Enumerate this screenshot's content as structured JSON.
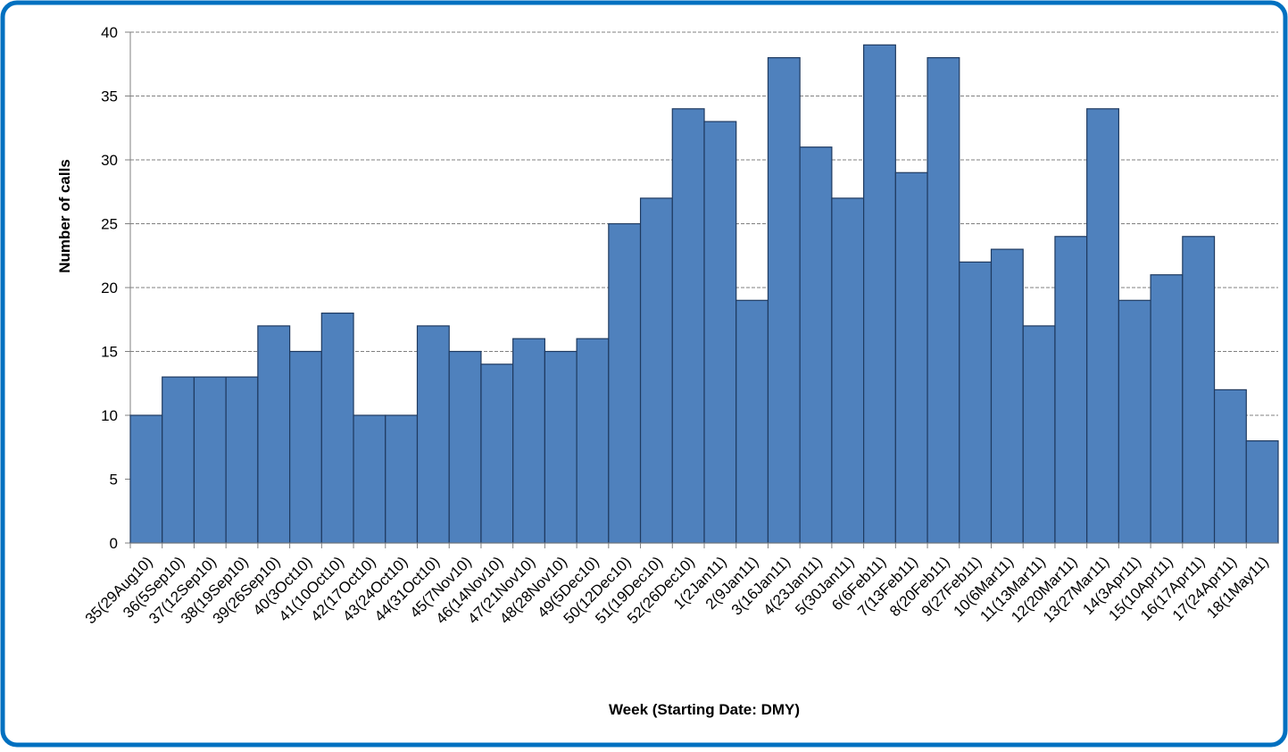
{
  "chart_data": {
    "type": "bar",
    "x_label": "Week (Starting Date: DMY)",
    "y_label": "Number of calls",
    "categories": [
      "35(29Aug10)",
      "36(5Sep10)",
      "37(12Sep10)",
      "38(19Sep10)",
      "39(26Sep10)",
      "40(3Oct10)",
      "41(10Oct10)",
      "42(17Oct10)",
      "43(24Oct10)",
      "44(31Oct10)",
      "45(7Nov10)",
      "46(14Nov10)",
      "47(21Nov10)",
      "48(28Nov10)",
      "49(5Dec10)",
      "50(12Dec10)",
      "51(19Dec10)",
      "52(26Dec10)",
      "1(2Jan11)",
      "2(9Jan11)",
      "3(16Jan11)",
      "4(23Jan11)",
      "5(30Jan11)",
      "6(6Feb11)",
      "7(13Feb11)",
      "8(20Feb11)",
      "9(27Feb11)",
      "10(6Mar11)",
      "11(13Mar11)",
      "12(20Mar11)",
      "13(27Mar11)",
      "14(3Apr11)",
      "15(10Apr11)",
      "16(17Apr11)",
      "17(24Apr11)",
      "18(1May11)"
    ],
    "values": [
      10,
      13,
      13,
      13,
      17,
      15,
      18,
      10,
      10,
      17,
      15,
      14,
      16,
      15,
      16,
      25,
      27,
      34,
      33,
      19,
      38,
      31,
      27,
      39,
      29,
      38,
      22,
      23,
      17,
      24,
      34,
      19,
      21,
      24,
      12,
      8
    ],
    "color": "#4f81bd",
    "ylim": [
      0,
      40
    ],
    "yticks": [
      0,
      5,
      10,
      15,
      20,
      25,
      30,
      35,
      40
    ],
    "grid": true
  }
}
